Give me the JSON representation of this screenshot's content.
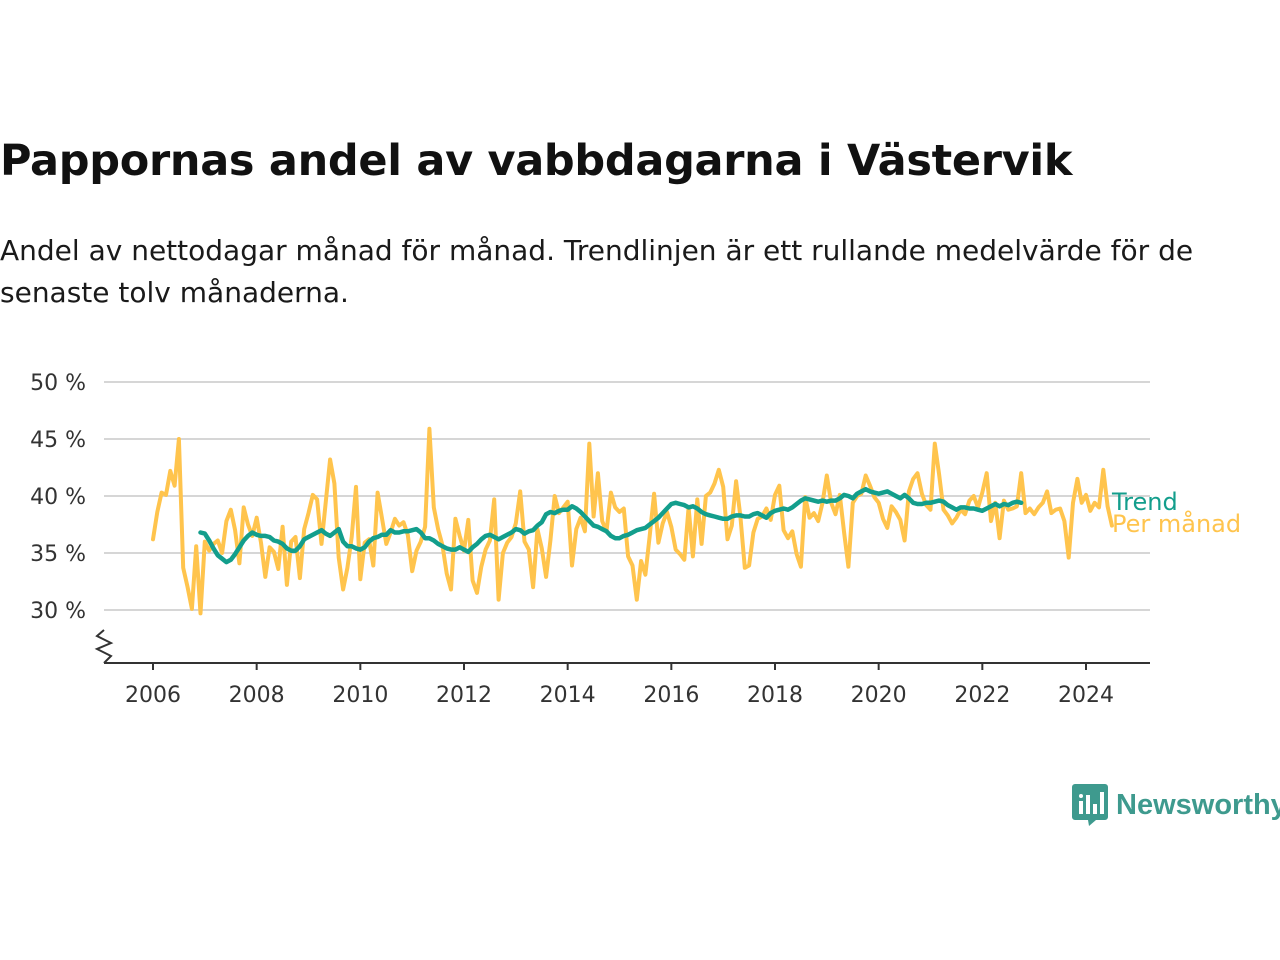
{
  "chart_data": {
    "type": "line",
    "title": "Pappornas andel av vabbdagarna i Västervik",
    "subtitle": "Andel av nettodagar månad för månad. Trendlinjen är ett rullande medelvärde för de senaste tolv månaderna.",
    "xlabel": "",
    "ylabel": "",
    "xlim": [
      2005.5,
      2025.3
    ],
    "ylim": [
      25,
      50
    ],
    "axis_break": true,
    "x_ticks": [
      2006,
      2008,
      2010,
      2012,
      2014,
      2016,
      2018,
      2020,
      2022,
      2024
    ],
    "x_tick_labels": [
      "2006",
      "2008",
      "2010",
      "2012",
      "2014",
      "2016",
      "2018",
      "2020",
      "2022",
      "2024"
    ],
    "y_ticks": [
      30,
      35,
      40,
      45,
      50
    ],
    "y_tick_labels": [
      "30 %",
      "35 %",
      "40 %",
      "45 %",
      "50 %"
    ],
    "grid": true,
    "legend": "direct labels at the right end of the lines",
    "series": [
      {
        "name": "Per månad",
        "color": "#ffc44d",
        "x_start": "2006-01",
        "step": "month",
        "values": [
          36.2,
          38.6,
          40.3,
          40.1,
          42.2,
          40.9,
          45.0,
          33.7,
          32.0,
          30.1,
          35.6,
          29.7,
          36.0,
          35.2,
          35.8,
          36.1,
          35.0,
          37.8,
          38.8,
          37.0,
          34.1,
          39.0,
          37.5,
          36.5,
          38.1,
          35.9,
          32.9,
          35.5,
          35.1,
          33.6,
          37.3,
          32.2,
          36.0,
          36.4,
          32.8,
          37.1,
          38.5,
          40.1,
          39.7,
          35.8,
          39.5,
          43.2,
          41.1,
          34.6,
          31.8,
          33.7,
          36.4,
          40.8,
          32.7,
          35.9,
          36.2,
          33.9,
          40.3,
          38.1,
          35.8,
          36.8,
          38.0,
          37.4,
          37.7,
          36.6,
          33.4,
          35.2,
          36.0,
          37.3,
          45.9,
          39.0,
          37.1,
          35.7,
          33.2,
          31.8,
          38.0,
          36.5,
          35.2,
          37.9,
          32.6,
          31.5,
          33.8,
          35.3,
          36.1,
          39.7,
          30.9,
          35.0,
          35.9,
          36.4,
          37.6,
          40.4,
          36.0,
          35.3,
          32.0,
          37.1,
          35.4,
          32.9,
          36.1,
          40.0,
          38.5,
          39.0,
          39.5,
          33.9,
          37.1,
          38.1,
          36.9,
          44.6,
          38.2,
          42.0,
          37.8,
          36.9,
          40.3,
          39.0,
          38.6,
          38.9,
          34.7,
          33.9,
          30.9,
          34.3,
          33.1,
          36.5,
          40.2,
          35.9,
          37.6,
          38.6,
          37.3,
          35.3,
          34.9,
          34.4,
          39.0,
          34.7,
          39.7,
          35.8,
          40.0,
          40.3,
          41.1,
          42.3,
          40.8,
          36.2,
          37.4,
          41.3,
          38.2,
          33.7,
          33.9,
          36.8,
          38.0,
          38.2,
          38.9,
          37.9,
          40.1,
          40.9,
          37.0,
          36.3,
          36.9,
          34.9,
          33.8,
          39.9,
          38.1,
          38.5,
          37.8,
          39.4,
          41.8,
          39.4,
          38.4,
          40.1,
          36.8,
          33.8,
          39.4,
          40.0,
          40.2,
          41.8,
          40.9,
          39.9,
          39.4,
          38.0,
          37.2,
          39.1,
          38.6,
          37.9,
          36.1,
          40.4,
          41.5,
          42.0,
          40.2,
          39.2,
          38.8,
          44.6,
          41.9,
          38.8,
          38.3,
          37.6,
          38.1,
          38.8,
          38.4,
          39.6,
          40.0,
          39.0,
          40.3,
          42.0,
          37.8,
          39.4,
          36.3,
          39.6,
          38.8,
          38.9,
          39.1,
          42.0,
          38.5,
          38.9,
          38.4,
          39.0,
          39.4,
          40.4,
          38.5,
          38.8,
          38.9,
          37.8,
          34.6,
          39.4,
          41.5,
          39.4,
          40.1,
          38.7,
          39.4,
          39.0,
          42.3,
          39.1,
          37.4
        ]
      },
      {
        "name": "Trend",
        "color": "#139e8c",
        "x_start": "2006-12",
        "step": "month",
        "values": [
          36.8,
          36.7,
          36.1,
          35.4,
          34.8,
          34.5,
          34.2,
          34.4,
          34.9,
          35.5,
          36.1,
          36.5,
          36.8,
          36.6,
          36.5,
          36.5,
          36.4,
          36.1,
          36.0,
          35.8,
          35.4,
          35.2,
          35.2,
          35.6,
          36.2,
          36.4,
          36.6,
          36.8,
          37.0,
          36.7,
          36.5,
          36.8,
          37.1,
          36.0,
          35.6,
          35.6,
          35.4,
          35.3,
          35.5,
          36.0,
          36.3,
          36.4,
          36.6,
          36.6,
          37.0,
          36.8,
          36.8,
          36.9,
          36.9,
          37.0,
          37.1,
          36.8,
          36.3,
          36.3,
          36.1,
          35.8,
          35.6,
          35.4,
          35.3,
          35.3,
          35.5,
          35.3,
          35.1,
          35.5,
          35.8,
          36.2,
          36.5,
          36.6,
          36.4,
          36.2,
          36.4,
          36.6,
          36.8,
          37.1,
          37.0,
          36.7,
          36.9,
          37.0,
          37.4,
          37.7,
          38.4,
          38.6,
          38.5,
          38.7,
          38.8,
          38.8,
          39.1,
          38.9,
          38.6,
          38.2,
          37.8,
          37.4,
          37.3,
          37.1,
          36.9,
          36.5,
          36.3,
          36.3,
          36.5,
          36.6,
          36.8,
          37.0,
          37.1,
          37.2,
          37.5,
          37.8,
          38.1,
          38.5,
          38.9,
          39.3,
          39.4,
          39.3,
          39.2,
          39.0,
          39.1,
          38.9,
          38.6,
          38.4,
          38.3,
          38.2,
          38.1,
          38.0,
          38.0,
          38.2,
          38.3,
          38.3,
          38.2,
          38.2,
          38.4,
          38.5,
          38.3,
          38.1,
          38.5,
          38.7,
          38.8,
          38.9,
          38.8,
          39.0,
          39.3,
          39.6,
          39.8,
          39.7,
          39.6,
          39.5,
          39.6,
          39.5,
          39.6,
          39.6,
          39.8,
          40.1,
          40.0,
          39.8,
          40.2,
          40.4,
          40.6,
          40.4,
          40.3,
          40.2,
          40.3,
          40.4,
          40.2,
          40.0,
          39.8,
          40.1,
          39.8,
          39.4,
          39.3,
          39.3,
          39.4,
          39.4,
          39.5,
          39.6,
          39.5,
          39.2,
          39.0,
          38.8,
          39.0,
          39.0,
          38.9,
          38.9,
          38.8,
          38.7,
          38.9,
          39.1,
          39.3,
          39.1,
          39.3,
          39.2,
          39.4,
          39.5,
          39.4
        ]
      }
    ]
  },
  "brand": {
    "name": "Newsworthy",
    "icon": "newsworthy-logo-icon",
    "color": "#3e9a8e"
  }
}
